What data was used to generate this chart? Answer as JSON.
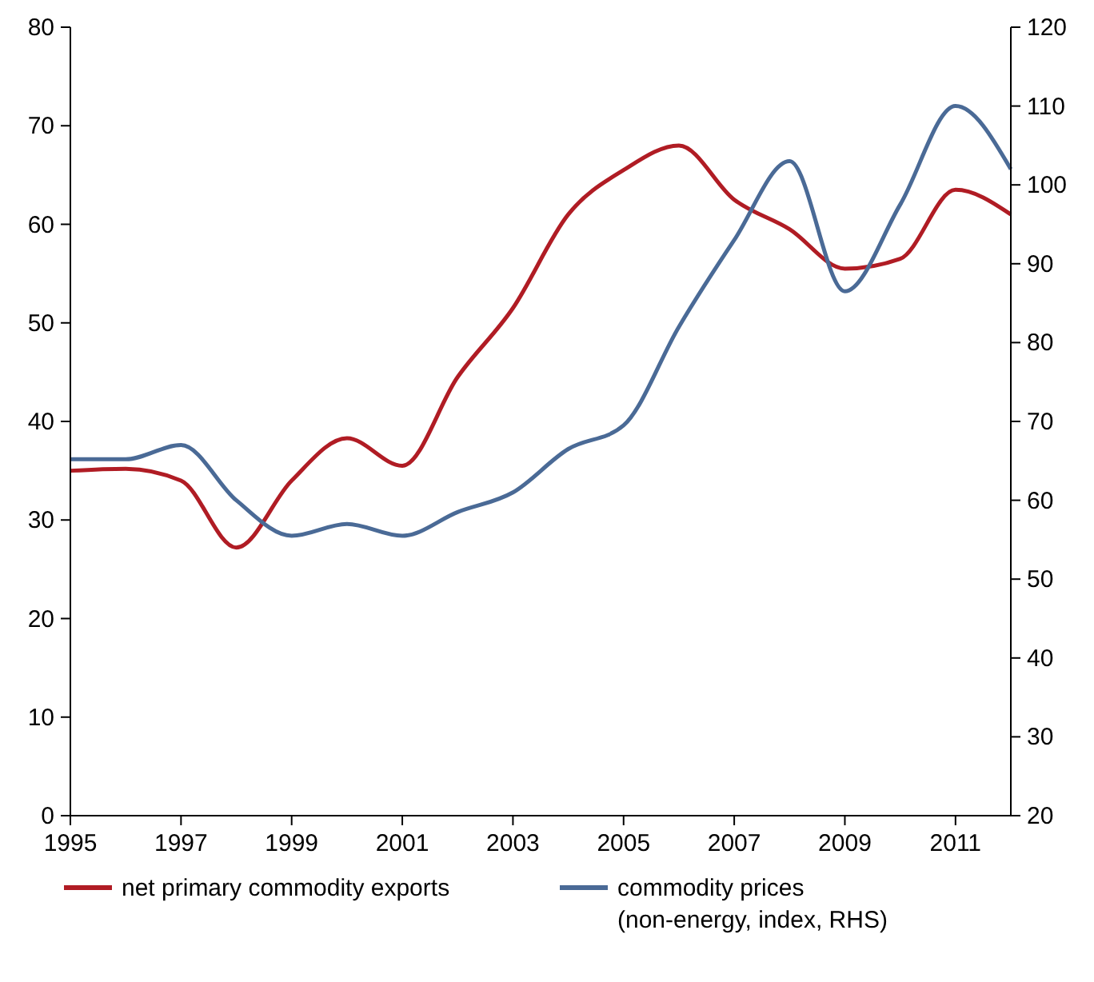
{
  "chart_data": {
    "type": "line",
    "x": [
      1995,
      1996,
      1997,
      1998,
      1999,
      2000,
      2001,
      2002,
      2003,
      2004,
      2005,
      2006,
      2007,
      2008,
      2009,
      2010,
      2011,
      2012
    ],
    "xlim": [
      1995,
      2012
    ],
    "xticks": [
      1995,
      1997,
      1999,
      2001,
      2003,
      2005,
      2007,
      2009,
      2011
    ],
    "ylim": [
      0,
      80
    ],
    "yticks": [
      0,
      10,
      20,
      30,
      40,
      50,
      60,
      70,
      80
    ],
    "y2lim": [
      20,
      120
    ],
    "y2ticks": [
      20,
      30,
      40,
      50,
      60,
      70,
      80,
      90,
      100,
      110,
      120
    ],
    "legend": "bottom",
    "grid": false,
    "marker": "none",
    "line_style": "solid",
    "series": [
      {
        "name": "net primary commodity exports",
        "color": "#b01c24",
        "values": [
          35,
          35.2,
          34,
          27.2,
          34,
          38.3,
          35.5,
          44.5,
          51.5,
          61,
          65.5,
          68,
          62.5,
          59.5,
          55.5,
          56.5,
          63.5,
          61
        ]
      },
      {
        "name": "commodity prices\n(non-energy, index, RHS)",
        "color": "#4a6a96",
        "axis": "y2",
        "values": [
          65.2,
          65.2,
          67,
          60,
          55.5,
          57,
          55.5,
          58.5,
          61,
          66.5,
          69.5,
          82,
          93,
          103,
          86.5,
          97.5,
          110,
          102
        ]
      }
    ]
  }
}
